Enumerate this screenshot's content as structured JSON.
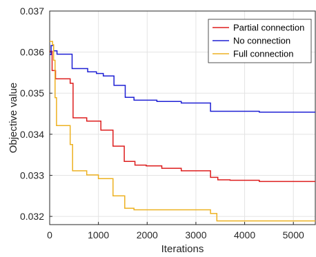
{
  "chart_data": {
    "type": "line",
    "title": "",
    "xlabel": "Iterations",
    "ylabel": "Objective value",
    "xlim": [
      0,
      5450
    ],
    "ylim": [
      0.0318,
      0.037
    ],
    "x_ticks": [
      0,
      1000,
      2000,
      3000,
      4000,
      5000
    ],
    "x_tick_labels": [
      "0",
      "1000",
      "2000",
      "3000",
      "4000",
      "5000"
    ],
    "y_ticks": [
      0.032,
      0.033,
      0.034,
      0.035,
      0.036,
      0.037
    ],
    "y_tick_labels": [
      "0.032",
      "0.033",
      "0.034",
      "0.035",
      "0.036",
      "0.037"
    ],
    "grid": true,
    "legend_position": "top-right",
    "step": true,
    "series": [
      {
        "name": "Partial connection",
        "color": "#dd1c1c",
        "x": [
          0,
          50,
          120,
          300,
          420,
          480,
          760,
          950,
          1050,
          1300,
          1530,
          1750,
          1980,
          2300,
          2700,
          3300,
          3450,
          3700,
          4300,
          4600,
          5450
        ],
        "y": [
          0.03602,
          0.03555,
          0.03535,
          0.03535,
          0.03524,
          0.0344,
          0.03432,
          0.03432,
          0.0341,
          0.03371,
          0.03334,
          0.03325,
          0.03323,
          0.03317,
          0.03311,
          0.03295,
          0.03289,
          0.03288,
          0.03285,
          0.03285,
          0.03285
        ]
      },
      {
        "name": "No connection",
        "color": "#1d1fd4",
        "x": [
          0,
          30,
          80,
          150,
          420,
          460,
          780,
          960,
          1100,
          1320,
          1550,
          1730,
          2200,
          2700,
          3300,
          3800,
          4300,
          5450
        ],
        "y": [
          0.03594,
          0.03616,
          0.03603,
          0.03595,
          0.03595,
          0.0356,
          0.03552,
          0.03548,
          0.03542,
          0.03519,
          0.0349,
          0.03483,
          0.0348,
          0.03476,
          0.03456,
          0.03456,
          0.03454,
          0.03454
        ],
        "final_y": 0.03454
      },
      {
        "name": "Full connection",
        "color": "#edb120",
        "x": [
          0,
          60,
          80,
          110,
          140,
          300,
          420,
          470,
          760,
          1000,
          1300,
          1540,
          1730,
          3200,
          3300,
          3430,
          5450
        ],
        "y": [
          0.03626,
          0.03618,
          0.0358,
          0.03489,
          0.03421,
          0.03421,
          0.03375,
          0.03311,
          0.03301,
          0.03292,
          0.0325,
          0.0322,
          0.03216,
          0.03216,
          0.03207,
          0.03189,
          0.03189
        ]
      }
    ]
  }
}
